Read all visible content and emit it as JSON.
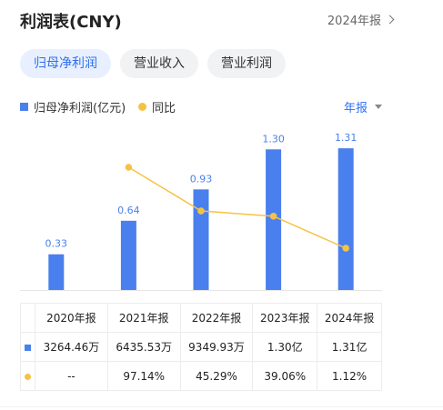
{
  "header": {
    "title": "利润表(CNY)",
    "report_link": "2024年报"
  },
  "tabs": [
    {
      "label": "归母净利润",
      "active": true
    },
    {
      "label": "营业收入",
      "active": false
    },
    {
      "label": "营业利润",
      "active": false
    }
  ],
  "legend": {
    "bar_label": "归母净利润(亿元)",
    "line_label": "同比"
  },
  "period_select": "年报",
  "colors": {
    "bar": "#4a80ed",
    "line": "#f6c244",
    "accent": "#2f6ff0",
    "negative_text": "#e5484d"
  },
  "chart_data": {
    "type": "bar",
    "categories": [
      "2020年报",
      "2021年报",
      "2022年报",
      "2023年报",
      "2024年报"
    ],
    "series": [
      {
        "name": "归母净利润(亿元)",
        "type": "bar",
        "values": [
          0.33,
          0.64,
          0.93,
          1.3,
          1.31
        ],
        "labels": [
          "0.33",
          "0.64",
          "0.93",
          "1.30",
          "1.31"
        ]
      },
      {
        "name": "同比",
        "type": "line",
        "values": [
          null,
          97.14,
          45.29,
          39.06,
          1.12
        ]
      }
    ]
  },
  "table": {
    "headers": [
      "2020年报",
      "2021年报",
      "2022年报",
      "2023年报",
      "2024年报"
    ],
    "profit_row": [
      "3264.46万",
      "6435.53万",
      "9349.93万",
      "1.30亿",
      "1.31亿"
    ],
    "yoy_row": [
      "--",
      "97.14%",
      "45.29%",
      "39.06%",
      "1.12%"
    ]
  }
}
